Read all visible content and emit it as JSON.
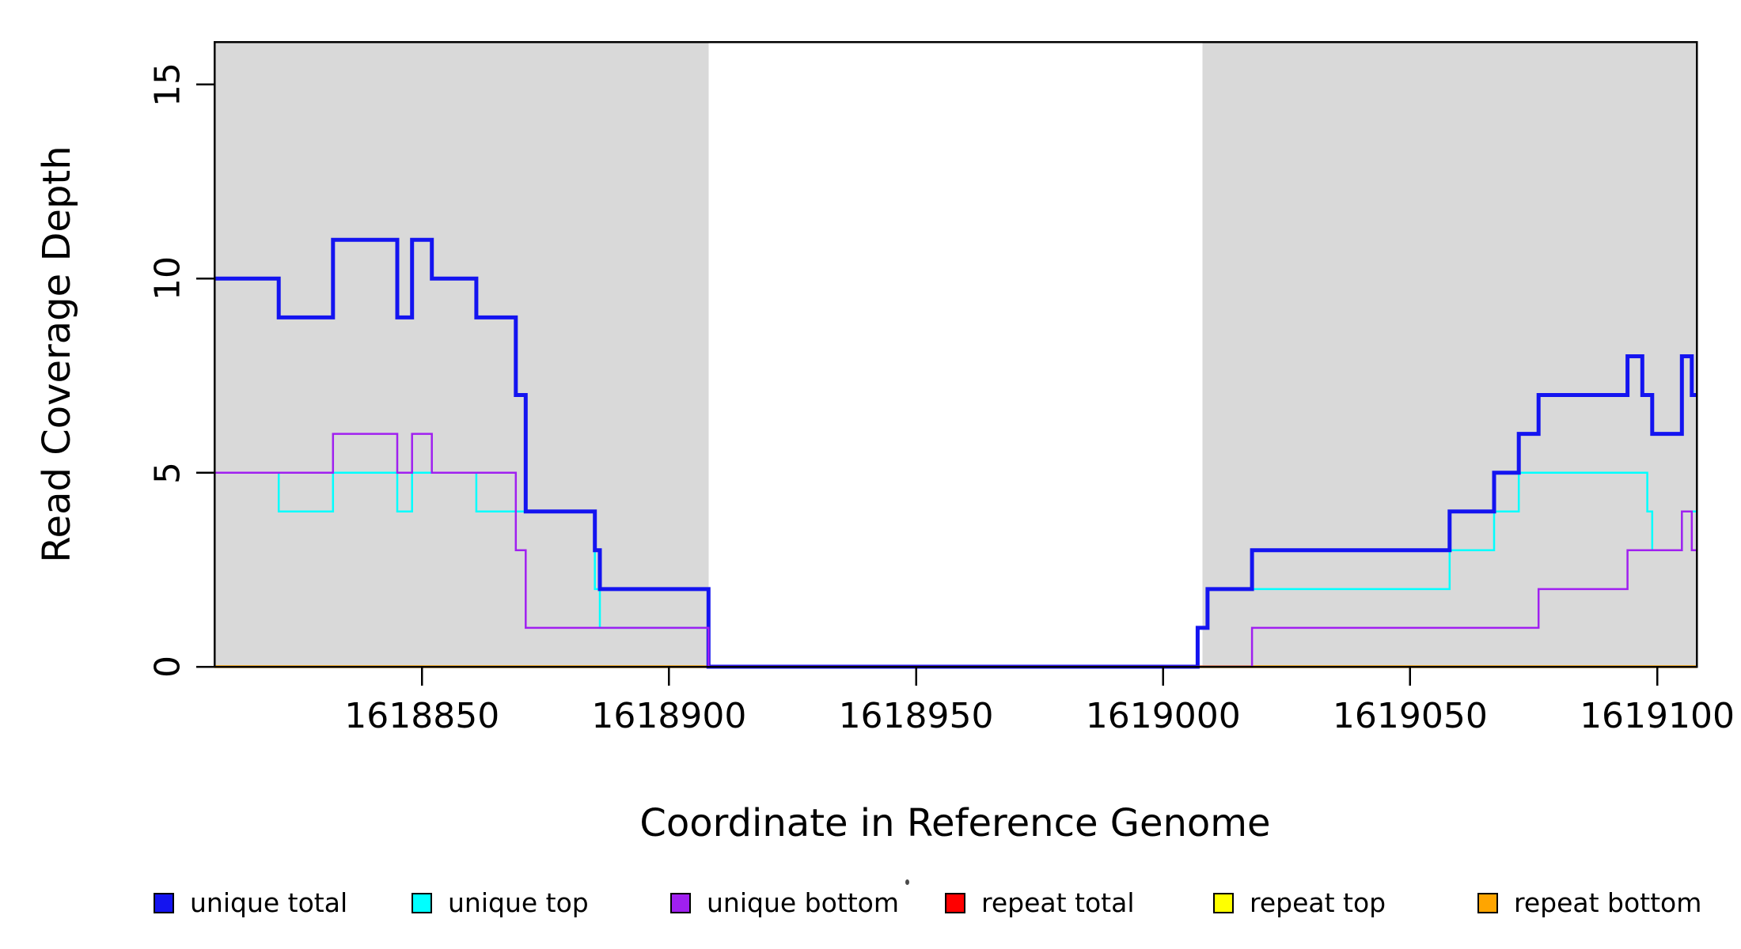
{
  "chart_data": {
    "type": "line",
    "subtype": "step-coverage",
    "title": "",
    "xlabel": "Coordinate in Reference Genome",
    "ylabel": "Read Coverage Depth",
    "xlim": [
      1618808,
      1619108
    ],
    "ylim": [
      0,
      16.1
    ],
    "grid": "off",
    "legend_position": "bottom",
    "x_ticks": [
      {
        "value": 1618850,
        "label": "1618850"
      },
      {
        "value": 1618900,
        "label": "1618900"
      },
      {
        "value": 1618950,
        "label": "1618950"
      },
      {
        "value": 1619000,
        "label": "1619000"
      },
      {
        "value": 1619050,
        "label": "1619050"
      },
      {
        "value": 1619100,
        "label": "1619100"
      }
    ],
    "y_ticks": [
      {
        "value": 0,
        "label": "0"
      },
      {
        "value": 5,
        "label": "5"
      },
      {
        "value": 10,
        "label": "10"
      },
      {
        "value": 15,
        "label": "15"
      }
    ],
    "shaded_regions": [
      {
        "from": 1618808,
        "to": 1618908,
        "color": "#D9D9D9"
      },
      {
        "from": 1619008,
        "to": 1619108,
        "color": "#D9D9D9"
      }
    ],
    "series": [
      {
        "name": "repeat total",
        "color": "#FF0000",
        "line_width": 2.5,
        "points": [
          [
            1618808,
            0
          ]
        ]
      },
      {
        "name": "repeat top",
        "color": "#FFFF00",
        "line_width": 2.5,
        "points": [
          [
            1618808,
            0
          ]
        ]
      },
      {
        "name": "repeat bottom",
        "color": "#FFA500",
        "line_width": 3.5,
        "points": [
          [
            1618808,
            0
          ]
        ]
      },
      {
        "name": "unique top",
        "color": "#00FFFF",
        "line_width": 2.5,
        "points": [
          [
            1618808,
            5
          ],
          [
            1618821,
            4
          ],
          [
            1618832,
            5
          ],
          [
            1618845,
            4
          ],
          [
            1618848,
            5
          ],
          [
            1618861,
            4
          ],
          [
            1618885,
            2
          ],
          [
            1618886,
            1
          ],
          [
            1618908,
            0
          ],
          [
            1619007,
            1
          ],
          [
            1619009,
            2
          ],
          [
            1619058,
            3
          ],
          [
            1619067,
            4
          ],
          [
            1619072,
            5
          ],
          [
            1619098,
            4
          ],
          [
            1619099,
            3
          ],
          [
            1619105,
            4
          ]
        ]
      },
      {
        "name": "unique total",
        "color": "#1414F0",
        "line_width": 5,
        "points": [
          [
            1618808,
            10
          ],
          [
            1618821,
            9
          ],
          [
            1618832,
            11
          ],
          [
            1618845,
            9
          ],
          [
            1618848,
            11
          ],
          [
            1618852,
            10
          ],
          [
            1618861,
            9
          ],
          [
            1618869,
            7
          ],
          [
            1618871,
            4
          ],
          [
            1618885,
            3
          ],
          [
            1618886,
            2
          ],
          [
            1618908,
            0
          ],
          [
            1619007,
            1
          ],
          [
            1619009,
            2
          ],
          [
            1619018,
            3
          ],
          [
            1619058,
            4
          ],
          [
            1619067,
            5
          ],
          [
            1619072,
            6
          ],
          [
            1619076,
            7
          ],
          [
            1619094,
            8
          ],
          [
            1619097,
            7
          ],
          [
            1619099,
            6
          ],
          [
            1619105,
            8
          ],
          [
            1619107,
            7
          ]
        ]
      },
      {
        "name": "unique bottom",
        "color": "#A020F0",
        "line_width": 2.5,
        "points": [
          [
            1618808,
            5
          ],
          [
            1618832,
            6
          ],
          [
            1618845,
            5
          ],
          [
            1618848,
            6
          ],
          [
            1618852,
            5
          ],
          [
            1618869,
            3
          ],
          [
            1618871,
            1
          ],
          [
            1618908,
            0
          ],
          [
            1619018,
            1
          ],
          [
            1619076,
            2
          ],
          [
            1619094,
            3
          ],
          [
            1619105,
            4
          ],
          [
            1619107,
            3
          ]
        ]
      }
    ],
    "legend": [
      {
        "label": "unique total",
        "color": "#1414F0"
      },
      {
        "label": "unique top",
        "color": "#00FFFF"
      },
      {
        "label": "unique bottom",
        "color": "#A020F0"
      },
      {
        "label": "repeat total",
        "color": "#FF0000"
      },
      {
        "label": "repeat top",
        "color": "#FFFF00"
      },
      {
        "label": "repeat bottom",
        "color": "#FFA500"
      }
    ]
  }
}
